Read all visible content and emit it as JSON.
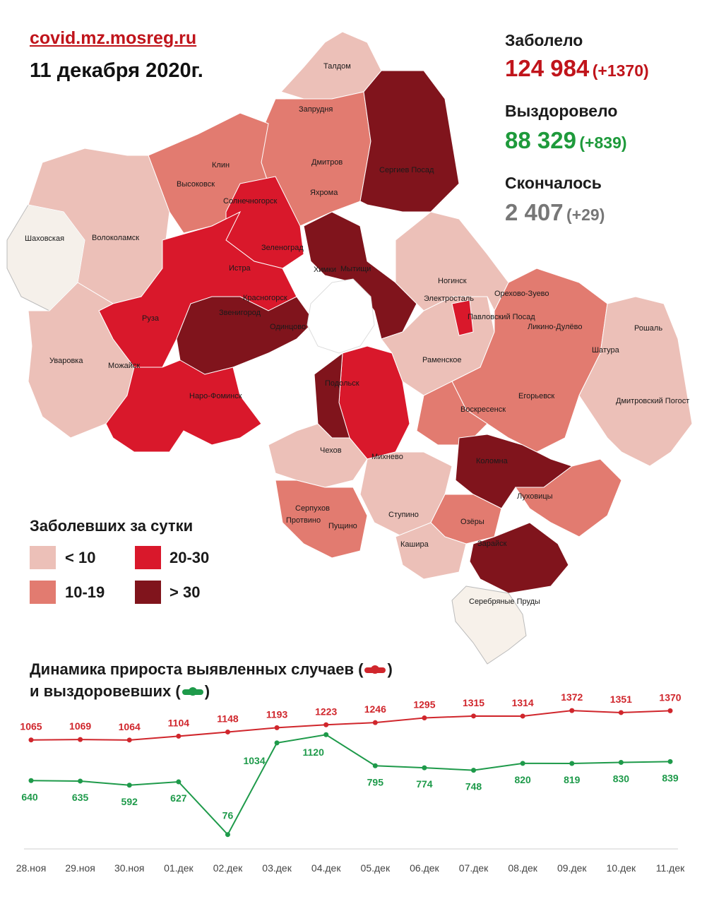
{
  "header": {
    "source": "covid.mz.mosreg.ru",
    "date": "11 декабря 2020г."
  },
  "stats": {
    "infected_label": "Заболело",
    "infected_value": "124 984",
    "infected_delta": "(+1370)",
    "recovered_label": "Выздоровело",
    "recovered_value": "88 329",
    "recovered_delta": "(+839)",
    "deaths_label": "Скончалось",
    "deaths_value": "2 407",
    "deaths_delta": "(+29)"
  },
  "colors": {
    "infected": "#c0141b",
    "recovered": "#1e9a3b",
    "deaths": "#777777",
    "bucket_lt10": "#ecc0b8",
    "bucket_10_19": "#e27b70",
    "bucket_20_30": "#d9182b",
    "bucket_gt30": "#80141c",
    "line_cases": "#d0262c",
    "line_recovered": "#1e9a4a"
  },
  "legend": {
    "title": "Заболевших за сутки",
    "items": [
      {
        "label": "< 10",
        "color": "#ecc0b8"
      },
      {
        "label": "20-30",
        "color": "#d9182b"
      },
      {
        "label": "10-19",
        "color": "#e27b70"
      },
      {
        "label": "> 30",
        "color": "#80141c"
      }
    ]
  },
  "map": {
    "towns": [
      "Талдом",
      "Запрудня",
      "Дмитров",
      "Яхрома",
      "Сергиев Посад",
      "Клин",
      "Высоковск",
      "Солнечногорск",
      "Шаховская",
      "Волоколамск",
      "Зеленоград",
      "Истра",
      "Химки",
      "Мытищи",
      "Красногорск",
      "Звенигород",
      "Одинцово",
      "Руза",
      "Уваровка",
      "Можайск",
      "Наро-Фоминск",
      "Ногинск",
      "Электросталь",
      "Павловский Посад",
      "Орехово-Зуево",
      "Ликино-Дулёво",
      "Рошаль",
      "Шатура",
      "Раменское",
      "Подольск",
      "Егорьевск",
      "Воскресенск",
      "Дмитровский Погост",
      "Чехов",
      "Михнево",
      "Коломна",
      "Луховицы",
      "Серпухов",
      "Протвино",
      "Пущино",
      "Ступино",
      "Озёры",
      "Кашира",
      "Зарайск",
      "Серебряные Пруды"
    ]
  },
  "dynamics": {
    "title_line1": "Динамика прироста выявленных случаев (",
    "title_line1_end": ")",
    "title_line2": "и выздоровевших (",
    "title_line2_end": ")"
  },
  "chart_data": {
    "type": "line",
    "categories": [
      "28.ноя",
      "29.ноя",
      "30.ноя",
      "01.дек",
      "02.дек",
      "03.дек",
      "04.дек",
      "05.дек",
      "06.дек",
      "07.дек",
      "08.дек",
      "09.дек",
      "10.дек",
      "11.дек"
    ],
    "series": [
      {
        "name": "выявленных случаев",
        "color": "#d0262c",
        "values": [
          1065,
          1069,
          1064,
          1104,
          1148,
          1193,
          1223,
          1246,
          1295,
          1315,
          1314,
          1372,
          1351,
          1370
        ]
      },
      {
        "name": "выздоровевших",
        "color": "#1e9a4a",
        "values": [
          640,
          635,
          592,
          627,
          76,
          1034,
          1120,
          795,
          774,
          748,
          820,
          819,
          830,
          839
        ]
      }
    ],
    "grid": false
  }
}
